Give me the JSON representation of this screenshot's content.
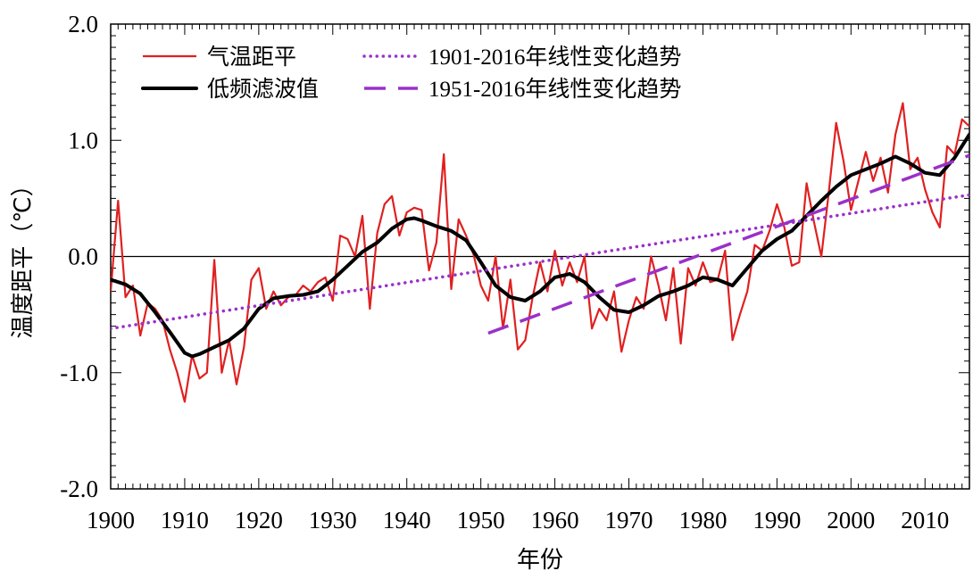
{
  "chart_data": {
    "type": "line",
    "xlabel": "年份",
    "ylabel": "温度距平（℃）",
    "xlim": [
      1900,
      2016
    ],
    "ylim": [
      -2.0,
      2.0
    ],
    "x_ticks": [
      1900,
      1910,
      1920,
      1930,
      1940,
      1950,
      1960,
      1970,
      1980,
      1990,
      2000,
      2010
    ],
    "x_tick_labels": [
      "1900",
      "1910",
      "1920",
      "1930",
      "1940",
      "1950",
      "1960",
      "1970",
      "1980",
      "1990",
      "2000",
      "2010"
    ],
    "y_ticks": [
      -2.0,
      -1.0,
      0.0,
      1.0,
      2.0
    ],
    "y_tick_labels": [
      "-2.0",
      "-1.0",
      "0.0",
      "1.0",
      "2.0"
    ],
    "zero_line": true,
    "legend_position": "top-left",
    "series": [
      {
        "name": "气温距平",
        "style": "solid-thin",
        "color": "#e02020",
        "x": [
          1900,
          1901,
          1902,
          1903,
          1904,
          1905,
          1906,
          1907,
          1908,
          1909,
          1910,
          1911,
          1912,
          1913,
          1914,
          1915,
          1916,
          1917,
          1918,
          1919,
          1920,
          1921,
          1922,
          1923,
          1924,
          1925,
          1926,
          1927,
          1928,
          1929,
          1930,
          1931,
          1932,
          1933,
          1934,
          1935,
          1936,
          1937,
          1938,
          1939,
          1940,
          1941,
          1942,
          1943,
          1944,
          1945,
          1946,
          1947,
          1948,
          1949,
          1950,
          1951,
          1952,
          1953,
          1954,
          1955,
          1956,
          1957,
          1958,
          1959,
          1960,
          1961,
          1962,
          1963,
          1964,
          1965,
          1966,
          1967,
          1968,
          1969,
          1970,
          1971,
          1972,
          1973,
          1974,
          1975,
          1976,
          1977,
          1978,
          1979,
          1980,
          1981,
          1982,
          1983,
          1984,
          1985,
          1986,
          1987,
          1988,
          1989,
          1990,
          1991,
          1992,
          1993,
          1994,
          1995,
          1996,
          1997,
          1998,
          1999,
          2000,
          2001,
          2002,
          2003,
          2004,
          2005,
          2006,
          2007,
          2008,
          2009,
          2010,
          2011,
          2012,
          2013,
          2014,
          2015,
          2016
        ],
        "y": [
          -0.3,
          0.48,
          -0.35,
          -0.25,
          -0.68,
          -0.4,
          -0.45,
          -0.55,
          -0.8,
          -1.0,
          -1.25,
          -0.85,
          -1.05,
          -1.0,
          -0.03,
          -1.0,
          -0.72,
          -1.1,
          -0.78,
          -0.2,
          -0.1,
          -0.45,
          -0.3,
          -0.42,
          -0.35,
          -0.33,
          -0.25,
          -0.3,
          -0.22,
          -0.18,
          -0.38,
          0.18,
          0.15,
          0.0,
          0.35,
          -0.45,
          0.2,
          0.45,
          0.52,
          0.18,
          0.38,
          0.42,
          0.4,
          -0.12,
          0.12,
          0.88,
          -0.28,
          0.32,
          0.18,
          0.02,
          -0.25,
          -0.38,
          0.0,
          -0.62,
          -0.2,
          -0.8,
          -0.72,
          -0.35,
          -0.05,
          -0.3,
          0.05,
          -0.25,
          -0.05,
          -0.22,
          0.0,
          -0.62,
          -0.45,
          -0.55,
          -0.3,
          -0.82,
          -0.55,
          -0.35,
          -0.45,
          0.0,
          -0.25,
          -0.55,
          -0.1,
          -0.75,
          -0.1,
          -0.25,
          -0.05,
          -0.22,
          -0.2,
          0.05,
          -0.72,
          -0.5,
          -0.3,
          0.1,
          0.05,
          0.22,
          0.45,
          0.25,
          -0.08,
          -0.05,
          0.63,
          0.3,
          0.0,
          0.55,
          1.15,
          0.82,
          0.4,
          0.65,
          0.9,
          0.65,
          0.85,
          0.55,
          1.05,
          1.32,
          0.75,
          0.85,
          0.58,
          0.38,
          0.25,
          0.95,
          0.88,
          1.18,
          1.12
        ]
      },
      {
        "name": "低频滤波值",
        "style": "solid-thick",
        "color": "#000000",
        "x": [
          1900,
          1902,
          1904,
          1906,
          1908,
          1910,
          1911,
          1912,
          1914,
          1916,
          1918,
          1920,
          1922,
          1924,
          1926,
          1928,
          1930,
          1932,
          1934,
          1936,
          1938,
          1940,
          1941,
          1942,
          1944,
          1946,
          1948,
          1950,
          1952,
          1954,
          1956,
          1958,
          1960,
          1962,
          1964,
          1966,
          1968,
          1970,
          1972,
          1974,
          1976,
          1978,
          1980,
          1982,
          1984,
          1986,
          1988,
          1990,
          1992,
          1994,
          1996,
          1998,
          2000,
          2002,
          2004,
          2006,
          2008,
          2010,
          2012,
          2014,
          2016
        ],
        "y": [
          -0.2,
          -0.24,
          -0.32,
          -0.48,
          -0.65,
          -0.83,
          -0.86,
          -0.84,
          -0.78,
          -0.72,
          -0.62,
          -0.45,
          -0.36,
          -0.34,
          -0.33,
          -0.3,
          -0.2,
          -0.08,
          0.04,
          0.12,
          0.24,
          0.32,
          0.33,
          0.31,
          0.26,
          0.22,
          0.14,
          -0.05,
          -0.25,
          -0.35,
          -0.38,
          -0.3,
          -0.18,
          -0.15,
          -0.22,
          -0.35,
          -0.46,
          -0.48,
          -0.42,
          -0.34,
          -0.3,
          -0.25,
          -0.18,
          -0.2,
          -0.25,
          -0.1,
          0.05,
          0.15,
          0.22,
          0.35,
          0.48,
          0.6,
          0.7,
          0.75,
          0.8,
          0.86,
          0.8,
          0.72,
          0.7,
          0.85,
          1.05
        ]
      },
      {
        "name": "1901-2016年线性变化趋势",
        "style": "dotted",
        "color": "#9b30c9",
        "x": [
          1900,
          2016
        ],
        "y": [
          -0.62,
          0.53
        ]
      },
      {
        "name": "1951-2016年线性变化趋势",
        "style": "dashed",
        "color": "#9b30c9",
        "x": [
          1951,
          2016
        ],
        "y": [
          -0.66,
          0.87
        ]
      }
    ]
  }
}
